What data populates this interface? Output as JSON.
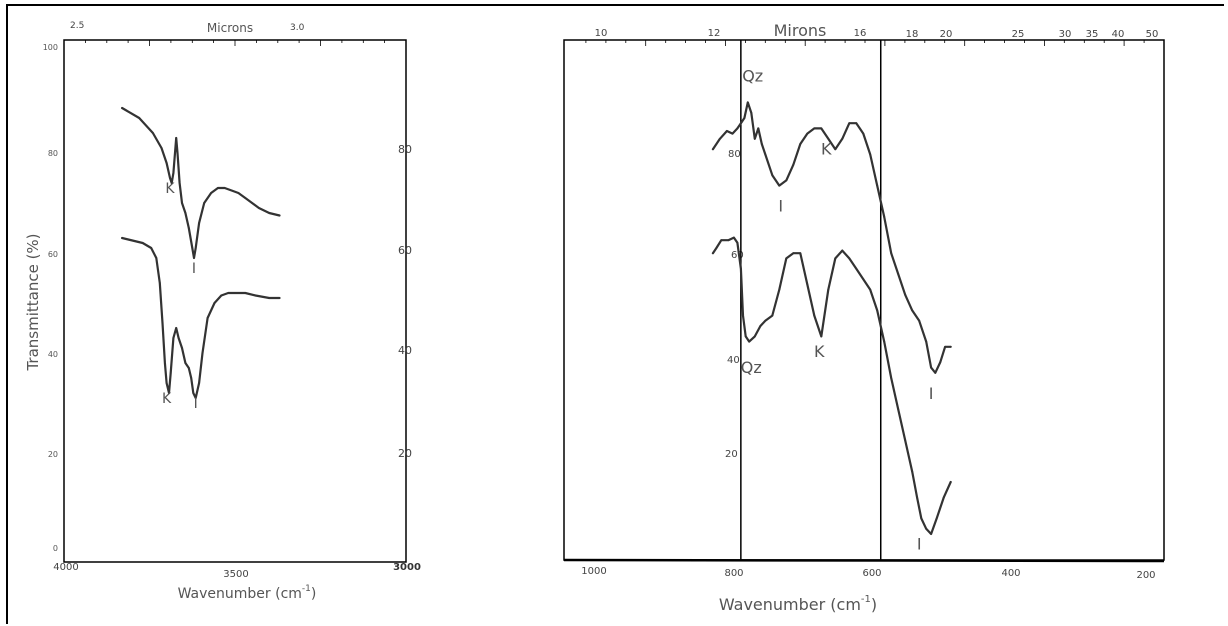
{
  "chart_data": [
    {
      "type": "line",
      "ylabel": "Transmittance (%)",
      "xlabel_main": "Wavenumber (cm",
      "xlabel_sup": "-1",
      "xlabel_close": ")",
      "top_axis_label": "Microns",
      "x_ticks": [
        "4000",
        "3500",
        "3000"
      ],
      "top_ticks": [
        "2.5",
        "3.0"
      ],
      "y_ticks": [
        "0",
        "20",
        "40",
        "60",
        "80",
        "100"
      ],
      "right_ticks": [
        "20",
        "40",
        "60",
        "80"
      ],
      "xlim": [
        4000,
        3000
      ],
      "ylim": [
        0,
        100
      ],
      "series": [
        {
          "x": [
            3830,
            3780,
            3740,
            3715,
            3700,
            3690,
            3685,
            3680,
            3672,
            3668,
            3662,
            3655,
            3645,
            3635,
            3625,
            3620,
            3615,
            3605,
            3590,
            3570,
            3550,
            3530,
            3510,
            3490,
            3470,
            3450,
            3430,
            3400,
            3370
          ],
          "y": [
            88,
            86,
            83,
            80,
            77,
            74,
            73,
            75,
            82,
            79,
            73,
            69,
            67,
            64,
            60,
            58,
            60,
            65,
            69,
            71,
            72,
            72,
            71.5,
            71,
            70,
            69,
            68,
            67,
            66.5
          ]
        },
        {
          "x": [
            3830,
            3800,
            3770,
            3745,
            3730,
            3720,
            3712,
            3705,
            3700,
            3693,
            3688,
            3680,
            3672,
            3665,
            3655,
            3645,
            3635,
            3628,
            3622,
            3615,
            3605,
            3595,
            3580,
            3560,
            3540,
            3520,
            3500,
            3470,
            3440,
            3400,
            3370
          ],
          "y": [
            62,
            61.5,
            61,
            60,
            58,
            53,
            45,
            37,
            33,
            31,
            35,
            42,
            44,
            42,
            40,
            37,
            36,
            34,
            31,
            30,
            33,
            39,
            46,
            49,
            50.5,
            51,
            51,
            51,
            50.5,
            50,
            50
          ]
        }
      ],
      "annotations": [
        {
          "text": "K",
          "x": 3690,
          "y": 71
        },
        {
          "text": "I",
          "x": 3620,
          "y": 55
        },
        {
          "text": "K",
          "x": 3700,
          "y": 29
        },
        {
          "text": "I",
          "x": 3615,
          "y": 28
        }
      ]
    },
    {
      "type": "line",
      "xlabel_main": "Wavenumber (cm",
      "xlabel_sup": "-1",
      "xlabel_close": ")",
      "top_axis_label": "Mirons",
      "x_ticks": [
        "1000",
        "800",
        "600",
        "400",
        "200"
      ],
      "top_ticks": [
        "10",
        "12",
        "16",
        "18",
        "20",
        "25",
        "30",
        "35",
        "40",
        "50"
      ],
      "inner_ticks": [
        "80",
        "60",
        "40",
        "20"
      ],
      "xlim": [
        1050,
        195
      ],
      "ylim": [
        0,
        100
      ],
      "vlines": [
        800,
        600
      ],
      "series": [
        {
          "x": [
            840,
            830,
            820,
            812,
            805,
            800,
            795,
            790,
            785,
            780,
            775,
            770,
            765,
            755,
            745,
            735,
            725,
            715,
            705,
            695,
            685,
            675,
            665,
            655,
            645,
            635,
            625,
            615,
            605,
            595,
            585,
            575,
            565,
            555,
            545,
            535,
            528,
            522,
            515,
            508,
            500
          ],
          "y": [
            79,
            81,
            82.5,
            82,
            83,
            84,
            85,
            88,
            86,
            81,
            83,
            80,
            78,
            74,
            72,
            73,
            76,
            80,
            82,
            83,
            83,
            81,
            79,
            81,
            84,
            84,
            82,
            78,
            72,
            66,
            59,
            55,
            51,
            48,
            46,
            42,
            37,
            36,
            38,
            41,
            41
          ]
        },
        {
          "x": [
            840,
            835,
            828,
            818,
            810,
            805,
            800,
            797,
            793,
            788,
            780,
            772,
            765,
            755,
            745,
            735,
            725,
            715,
            705,
            695,
            685,
            675,
            665,
            655,
            645,
            635,
            625,
            615,
            605,
            595,
            585,
            575,
            565,
            555,
            548,
            542,
            535,
            528,
            520,
            510,
            500
          ],
          "y": [
            59,
            60,
            61.5,
            61.5,
            62,
            61,
            56,
            47,
            43,
            42,
            43,
            45,
            46,
            47,
            52,
            58,
            59,
            59,
            53,
            47,
            43,
            52,
            58,
            59.5,
            58,
            56,
            54,
            52,
            48,
            42,
            35,
            29,
            23,
            17,
            12,
            8,
            6,
            5,
            8,
            12,
            15
          ]
        }
      ],
      "annotations": [
        {
          "text": "Qz",
          "x": 783,
          "y": 92
        },
        {
          "text": "I",
          "x": 743,
          "y": 67
        },
        {
          "text": "K",
          "x": 678,
          "y": 78
        },
        {
          "text": "Qz",
          "x": 785,
          "y": 36
        },
        {
          "text": "K",
          "x": 688,
          "y": 39
        },
        {
          "text": "I",
          "x": 528,
          "y": 31
        },
        {
          "text": "I",
          "x": 545,
          "y": 2
        }
      ]
    }
  ]
}
